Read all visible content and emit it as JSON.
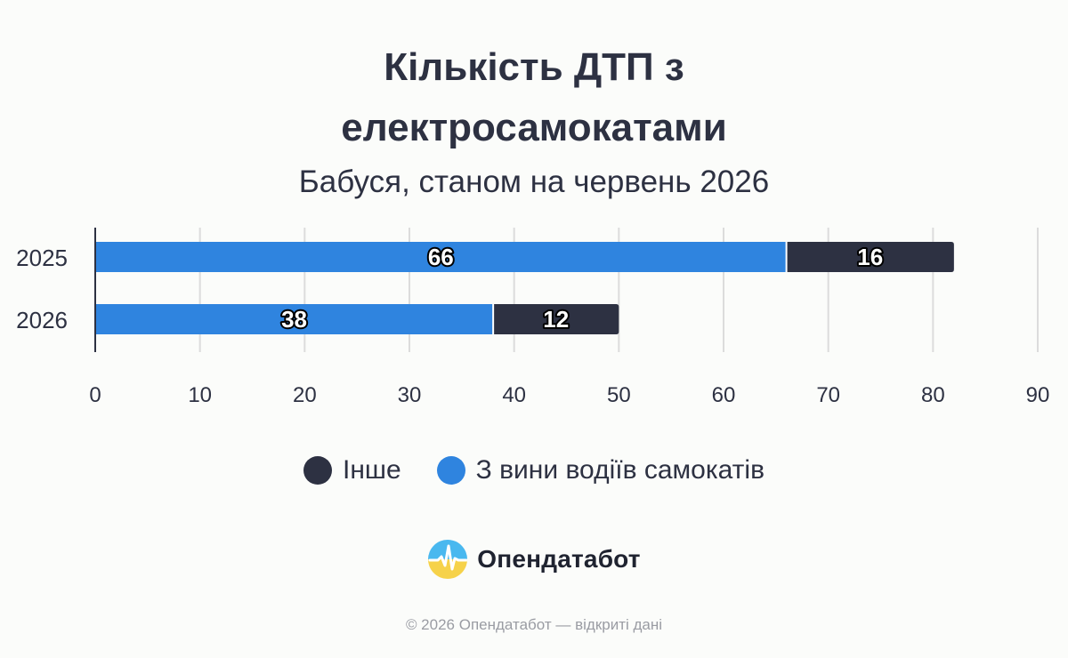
{
  "header": {
    "title_line1": "Кількість ДТП з",
    "title_line2": "електросамокатами",
    "subtitle": "Бабуся, станом на червень 2026"
  },
  "chart_data": {
    "type": "bar",
    "orientation": "horizontal",
    "stacked": true,
    "categories": [
      "2025",
      "2026"
    ],
    "series": [
      {
        "name": "З вини водіїв самокатів",
        "values": [
          66,
          38
        ],
        "color": "#2f84df"
      },
      {
        "name": "Інше",
        "values": [
          16,
          12
        ],
        "color": "#2d3142"
      }
    ],
    "xlim": [
      0,
      90
    ],
    "xticks": [
      "0",
      "10",
      "20",
      "30",
      "40",
      "50",
      "60",
      "70",
      "80",
      "90"
    ],
    "grid": true,
    "legend_position": "bottom"
  },
  "legend": [
    {
      "label": "Інше",
      "color": "#2d3142"
    },
    {
      "label": "З вини водіїв самокатів",
      "color": "#2f84df"
    }
  ],
  "brand": {
    "name": "Опендатабот",
    "icon": "opendatabot-logo-icon"
  },
  "footer": {
    "text": "© 2026 Опендатабот — відкриті дані"
  }
}
